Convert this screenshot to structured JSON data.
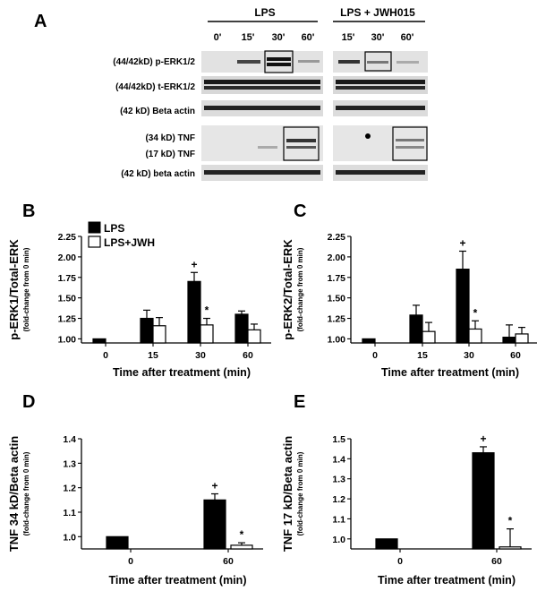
{
  "figure": {
    "panels": {
      "A": "A",
      "B": "B",
      "C": "C",
      "D": "D",
      "E": "E"
    }
  },
  "blot": {
    "group1": "LPS",
    "group2": "LPS + JWH015",
    "times_group1": [
      "0'",
      "15'",
      "30'",
      "60'"
    ],
    "times_group2": [
      "15'",
      "30'",
      "60'"
    ],
    "row_labels": [
      "(44/42kD) p-ERK1/2",
      "(44/42kD) t-ERK1/2",
      "(42 kD)  Beta actin",
      "(34 kD) TNF",
      "(17 kD) TNF",
      "(42 kD) beta actin"
    ]
  },
  "legend": {
    "series1": "LPS",
    "series2": "LPS+JWH"
  },
  "colors": {
    "lps": "#000000",
    "jwh": "#ffffff"
  },
  "chart_data": [
    {
      "id": "B",
      "type": "bar",
      "ylabel": "p-ERK1/Total-ERK",
      "ysub": "(fold-change from 0 min)",
      "xlabel": "Time after treatment (min)",
      "categories": [
        "0",
        "15",
        "30",
        "60"
      ],
      "ylim": [
        0.95,
        2.25
      ],
      "yticks": [
        "1.00",
        "1.25",
        "1.50",
        "1.75",
        "2.00",
        "2.25"
      ],
      "series": [
        {
          "name": "LPS",
          "values": [
            1.0,
            1.25,
            1.7,
            1.3
          ],
          "errors": [
            0.0,
            0.1,
            0.11,
            0.04
          ]
        },
        {
          "name": "LPS+JWH",
          "values": [
            null,
            1.16,
            1.17,
            1.11
          ],
          "errors": [
            null,
            0.1,
            0.08,
            0.07
          ]
        }
      ],
      "annotations": [
        {
          "category": "30",
          "series": "LPS",
          "text": "+"
        },
        {
          "category": "30",
          "series": "LPS+JWH",
          "text": "*"
        }
      ]
    },
    {
      "id": "C",
      "type": "bar",
      "ylabel": "p-ERK2/Total-ERK",
      "ysub": "(fold-change from 0 min)",
      "xlabel": "Time after treatment (min)",
      "categories": [
        "0",
        "15",
        "30",
        "60"
      ],
      "ylim": [
        0.95,
        2.25
      ],
      "yticks": [
        "1.00",
        "1.25",
        "1.50",
        "1.75",
        "2.00",
        "2.25"
      ],
      "series": [
        {
          "name": "LPS",
          "values": [
            1.0,
            1.29,
            1.85,
            1.02
          ],
          "errors": [
            0.0,
            0.12,
            0.22,
            0.15
          ]
        },
        {
          "name": "LPS+JWH",
          "values": [
            null,
            1.09,
            1.12,
            1.06
          ],
          "errors": [
            null,
            0.11,
            0.1,
            0.08
          ]
        }
      ],
      "annotations": [
        {
          "category": "30",
          "series": "LPS",
          "text": "+"
        },
        {
          "category": "30",
          "series": "LPS+JWH",
          "text": "*"
        }
      ]
    },
    {
      "id": "D",
      "type": "bar",
      "ylabel": "TNF 34 kD/Beta actin",
      "ysub": "(fold-change from 0 min)",
      "xlabel": "Time after treatment (min)",
      "categories": [
        "0",
        "60"
      ],
      "ylim": [
        0.95,
        1.4
      ],
      "yticks": [
        "1.0",
        "1.1",
        "1.2",
        "1.3",
        "1.4"
      ],
      "series": [
        {
          "name": "LPS",
          "values": [
            1.0,
            1.15
          ],
          "errors": [
            0.0,
            0.025
          ]
        },
        {
          "name": "LPS+JWH",
          "values": [
            null,
            0.965
          ],
          "errors": [
            null,
            0.01
          ]
        }
      ],
      "annotations": [
        {
          "category": "60",
          "series": "LPS",
          "text": "+"
        },
        {
          "category": "60",
          "series": "LPS+JWH",
          "text": "*"
        }
      ]
    },
    {
      "id": "E",
      "type": "bar",
      "ylabel": "TNF 17 kD/Beta actin",
      "ysub": "(fold-change from 0 min)",
      "xlabel": "Time after treatment (min)",
      "categories": [
        "0",
        "60"
      ],
      "ylim": [
        0.95,
        1.5
      ],
      "yticks": [
        "1.0",
        "1.1",
        "1.2",
        "1.3",
        "1.4",
        "1.5"
      ],
      "series": [
        {
          "name": "LPS",
          "values": [
            1.0,
            1.43
          ],
          "errors": [
            0.0,
            0.03
          ]
        },
        {
          "name": "LPS+JWH",
          "values": [
            null,
            0.96
          ],
          "errors": [
            null,
            0.09
          ]
        }
      ],
      "annotations": [
        {
          "category": "60",
          "series": "LPS",
          "text": "+"
        },
        {
          "category": "60",
          "series": "LPS+JWH",
          "text": "*"
        }
      ]
    }
  ]
}
